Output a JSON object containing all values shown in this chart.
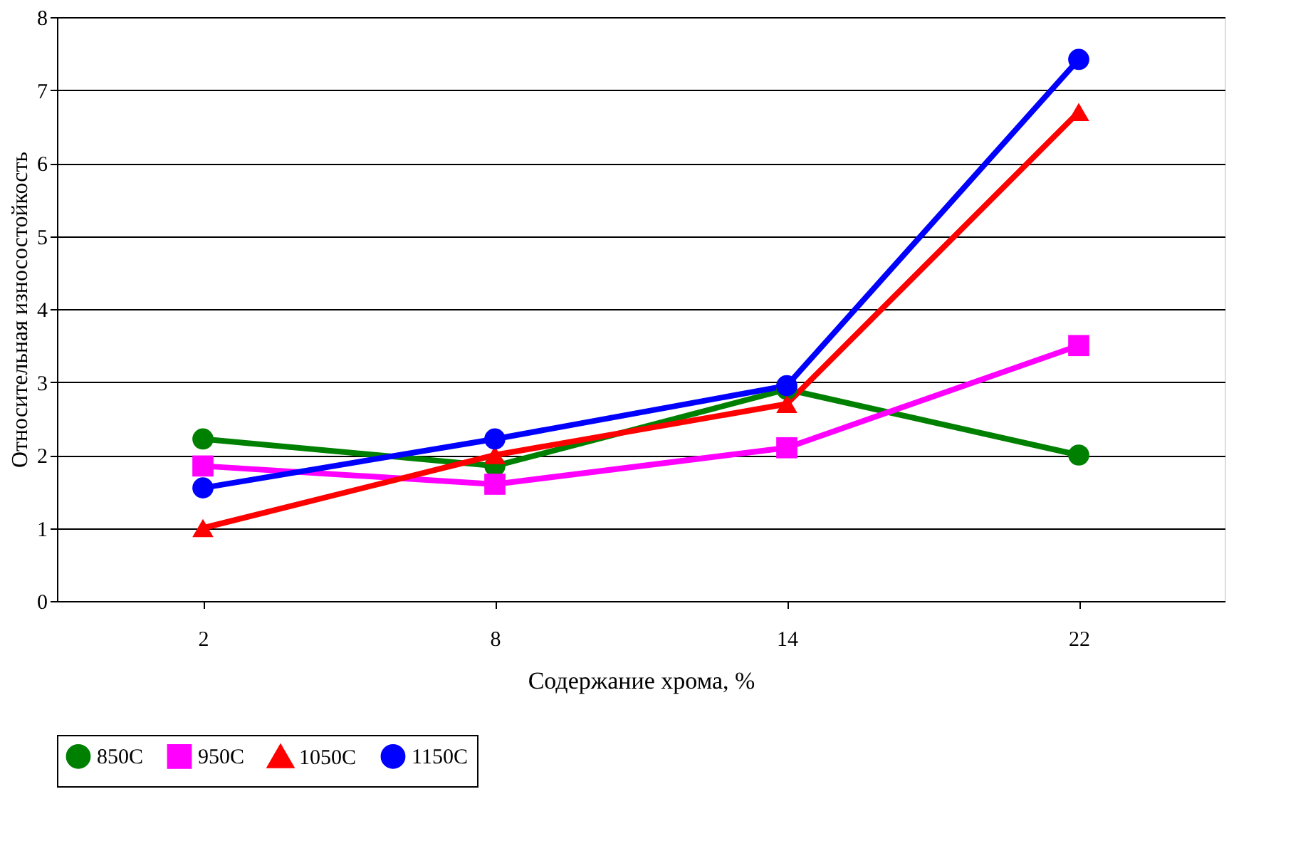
{
  "chart_data": {
    "type": "line",
    "xlabel": "Содержание хрома, %",
    "ylabel": "Относительная износостойкость",
    "categories": [
      "2",
      "8",
      "14",
      "22"
    ],
    "series": [
      {
        "name": "850C",
        "color": "#008000",
        "marker": "circle",
        "values": [
          2.22,
          1.85,
          2.9,
          2.0
        ]
      },
      {
        "name": "950C",
        "color": "#ff00ff",
        "marker": "square",
        "values": [
          1.85,
          1.6,
          2.1,
          3.5
        ]
      },
      {
        "name": "1050C",
        "color": "#ff0000",
        "marker": "triangle",
        "values": [
          1.0,
          2.0,
          2.7,
          6.7
        ]
      },
      {
        "name": "1150C",
        "color": "#0000ff",
        "marker": "circle",
        "values": [
          1.55,
          2.22,
          2.95,
          7.42
        ]
      }
    ],
    "ylim": [
      0,
      8
    ],
    "yticks": [
      0,
      1,
      2,
      3,
      4,
      5,
      6,
      7,
      8
    ],
    "grid": "y",
    "legend": "bottom",
    "line_style": "solid"
  }
}
